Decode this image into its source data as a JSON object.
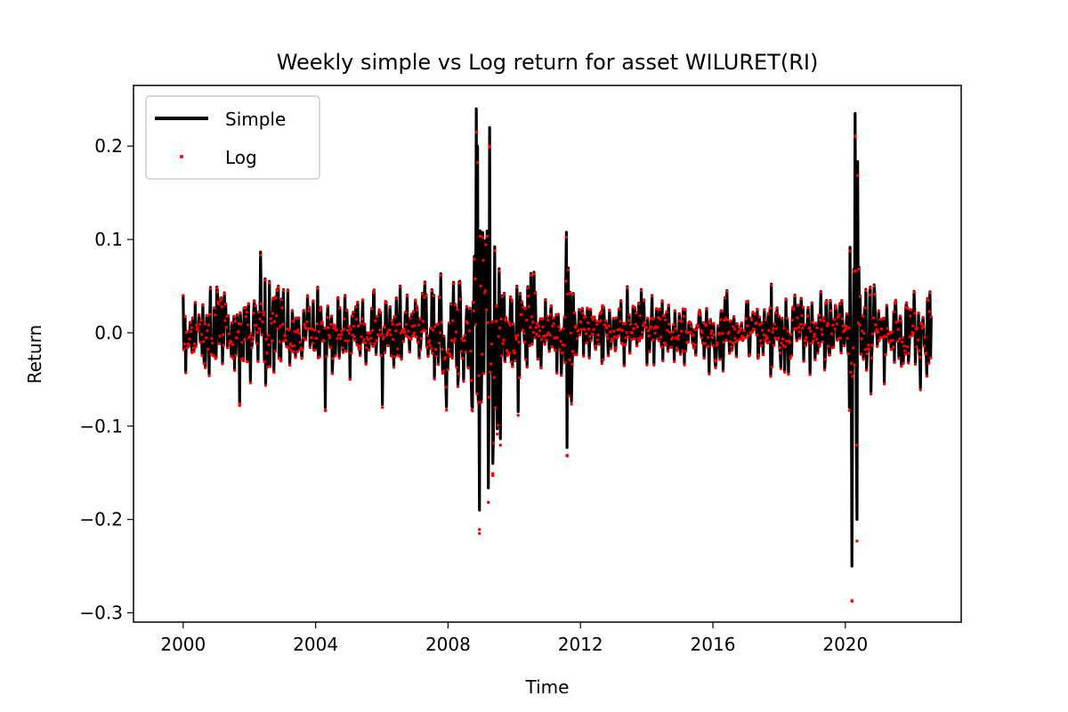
{
  "chart_data": {
    "type": "line",
    "title": "Weekly simple vs Log return for asset WILURET(RI)",
    "xlabel": "Time",
    "ylabel": "Return",
    "xlim": [
      1998.5,
      2023.5
    ],
    "ylim": [
      -0.31,
      0.265
    ],
    "x_ticks": [
      "2000",
      "2004",
      "2008",
      "2012",
      "2016",
      "2020"
    ],
    "x_tick_values": [
      2000,
      2004,
      2008,
      2012,
      2016,
      2020
    ],
    "y_ticks": [
      "0.2",
      "0.1",
      "0.0",
      "−0.1",
      "−0.2",
      "−0.3"
    ],
    "y_tick_values": [
      0.2,
      0.1,
      0.0,
      -0.1,
      -0.2,
      -0.3
    ],
    "grid": false,
    "legend_position": "upper-left",
    "x_range": [
      2000.0,
      2022.6
    ],
    "series": [
      {
        "name": "Simple",
        "style": "line",
        "color": "#000000"
      },
      {
        "name": "Log",
        "style": "markers",
        "color": "#ff0000"
      }
    ],
    "notable_points": [
      {
        "x": 2001.7,
        "simple": -0.075,
        "log": -0.076
      },
      {
        "x": 2004.3,
        "simple": -0.08,
        "log": -0.083
      },
      {
        "x": 2008.85,
        "simple": 0.24,
        "log": 0.215
      },
      {
        "x": 2008.95,
        "simple": -0.19,
        "log": -0.215
      },
      {
        "x": 2009.25,
        "simple": 0.22,
        "log": 0.2
      },
      {
        "x": 2009.35,
        "simple": -0.14,
        "log": -0.153
      },
      {
        "x": 2011.6,
        "simple": -0.123,
        "log": -0.132
      },
      {
        "x": 2020.2,
        "simple": -0.25,
        "log": -0.287
      },
      {
        "x": 2020.3,
        "simple": 0.235,
        "log": 0.21
      }
    ]
  }
}
